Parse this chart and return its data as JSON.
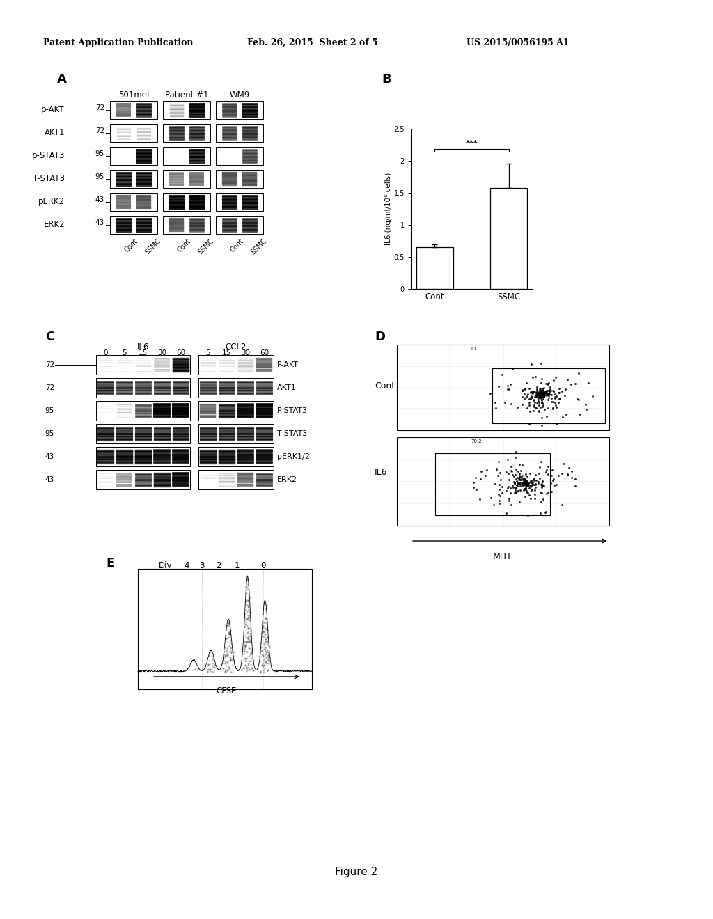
{
  "header_left": "Patent Application Publication",
  "header_mid": "Feb. 26, 2015  Sheet 2 of 5",
  "header_right": "US 2015/0056195 A1",
  "figure_label": "Figure 2",
  "panel_B": {
    "categories": [
      "Cont",
      "SSMC"
    ],
    "values": [
      0.65,
      1.58
    ],
    "errors": [
      0.05,
      0.38
    ],
    "ylabel": "IL6 (ng/ml/10⁶ cells)",
    "ylim": [
      0,
      2.5
    ],
    "yticks": [
      0,
      0.5,
      1.0,
      1.5,
      2.0,
      2.5
    ],
    "ytick_labels": [
      "0",
      "0.5",
      "1",
      "1.5",
      "2",
      "2.5"
    ],
    "significance": "***"
  },
  "panel_A": {
    "col_labels": [
      "501mel",
      "Patient #1",
      "WM9"
    ],
    "row_labels": [
      "p-AKT",
      "AKT1",
      "p-STAT3",
      "T-STAT3",
      "pERK2",
      "ERK2"
    ],
    "row_kda": [
      "72",
      "72",
      "95",
      "95",
      "43",
      "43"
    ]
  },
  "panel_C": {
    "group1_label": "IL6",
    "group2_label": "CCL2",
    "time_labels_g1": [
      "0",
      "5",
      "15",
      "30",
      "60"
    ],
    "time_labels_g2": [
      "5",
      "15",
      "30",
      "60"
    ],
    "row_labels": [
      "P-AKT",
      "AKT1",
      "P-STAT3",
      "T-STAT3",
      "pERK1/2",
      "ERK2"
    ],
    "row_kda": [
      "72",
      "72",
      "95",
      "95",
      "43",
      "43"
    ]
  },
  "panel_D": {
    "top_label": "Cont",
    "bottom_label": "IL6",
    "xlabel": "MITF"
  },
  "panel_E": {
    "div_label": "Div",
    "div_numbers": [
      "4",
      "3",
      "2",
      "1",
      "0"
    ],
    "xlabel": "CFSE"
  },
  "bg_color": "#ffffff",
  "text_color": "#000000"
}
